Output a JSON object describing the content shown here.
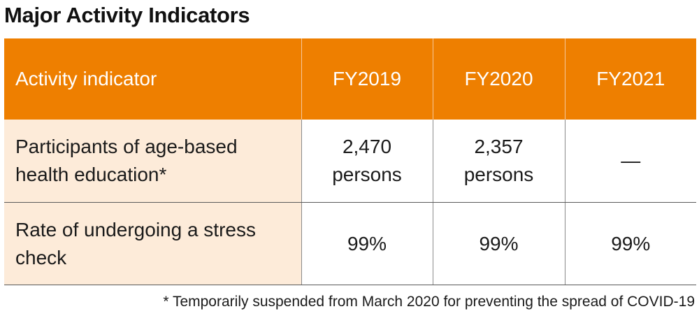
{
  "title": "Major Activity Indicators",
  "table": {
    "headers": [
      "Activity indicator",
      "FY2019",
      "FY2020",
      "FY2021"
    ],
    "rows": [
      {
        "label_line1": "Participants of age-based",
        "label_line2": "health education*",
        "values": [
          {
            "line1": "2,470",
            "line2": "persons"
          },
          {
            "line1": "2,357",
            "line2": "persons"
          },
          {
            "line1": "—",
            "line2": ""
          }
        ]
      },
      {
        "label_line1": "Rate of undergoing a stress",
        "label_line2": "check",
        "values": [
          {
            "line1": "99%",
            "line2": ""
          },
          {
            "line1": "99%",
            "line2": ""
          },
          {
            "line1": "99%",
            "line2": ""
          }
        ]
      }
    ]
  },
  "footnote": "* Temporarily suspended from March 2020 for preventing the spread of COVID-19",
  "colors": {
    "header_bg": "#ee7f00",
    "label_bg": "#fdebd9",
    "header_text": "#ffffff"
  }
}
